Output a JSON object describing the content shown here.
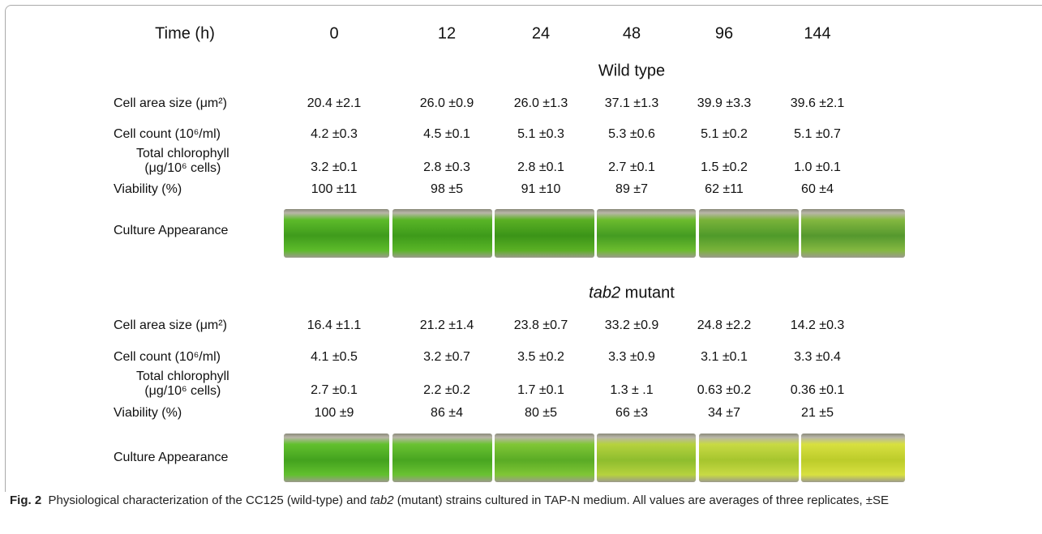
{
  "header": {
    "label": "Time (h)",
    "times": [
      "0",
      "12",
      "24",
      "48",
      "96",
      "144"
    ]
  },
  "sections": [
    {
      "title": [
        "Wild type"
      ],
      "rows": [
        {
          "label": [
            "Cell area size (μm²)"
          ],
          "values": [
            "20.4 ±2.1",
            "26.0 ±0.9",
            "26.0 ±1.3",
            "37.1 ±1.3",
            "39.9 ±3.3",
            "39.6 ±2.1"
          ]
        },
        {
          "label": [
            "Cell count (10⁶/ml)"
          ],
          "values": [
            "4.2 ±0.3",
            "4.5 ±0.1",
            "5.1 ±0.3",
            "5.3 ±0.6",
            "5.1 ±0.2",
            "5.1 ±0.7"
          ]
        },
        {
          "label": [
            "Total chlorophyll",
            "(μg/10⁶ cells)"
          ],
          "values": [
            "3.2 ±0.1",
            "2.8 ±0.3",
            "2.8 ±0.1",
            "2.7 ±0.1",
            "1.5 ±0.2",
            "1.0 ±0.1"
          ]
        },
        {
          "label": [
            "Viability (%)"
          ],
          "values": [
            "100 ±11",
            "98 ±5",
            "91 ±10",
            "89 ±7",
            "62 ±11",
            "60 ±4"
          ]
        }
      ],
      "appearance_label": "Culture Appearance"
    },
    {
      "title": [
        "tab2",
        " mutant"
      ],
      "rows": [
        {
          "label": [
            "Cell area size (μm²)"
          ],
          "values": [
            "16.4 ±1.1",
            "21.2 ±1.4",
            "23.8 ±0.7",
            "33.2 ±0.9",
            "24.8 ±2.2",
            "14.2 ±0.3"
          ]
        },
        {
          "label": [
            "Cell count (10⁶/ml)"
          ],
          "values": [
            "4.1 ±0.5",
            "3.2 ±0.7",
            "3.5 ±0.2",
            "3.3 ±0.9",
            "3.1 ±0.1",
            "3.3 ±0.4"
          ]
        },
        {
          "label": [
            "Total chlorophyll",
            "(μg/10⁶ cells)"
          ],
          "values": [
            "2.7 ±0.1",
            "2.2 ±0.2",
            "1.7 ±0.1",
            "1.3 ± .1",
            "0.63 ±0.2",
            "0.36 ±0.1"
          ]
        },
        {
          "label": [
            "Viability (%)"
          ],
          "values": [
            "100 ±9",
            "86 ±4",
            "80 ±5",
            "66 ±3",
            "34 ±7",
            "21 ±5"
          ]
        }
      ],
      "appearance_label": "Culture Appearance"
    }
  ],
  "caption": {
    "label": "Fig. 2",
    "parts": [
      "Physiological characterization of the CC125 (wild-type) and ",
      "tab2",
      " (mutant) strains cultured in TAP-N medium. All values are averages of three replicates, ±SE"
    ]
  }
}
